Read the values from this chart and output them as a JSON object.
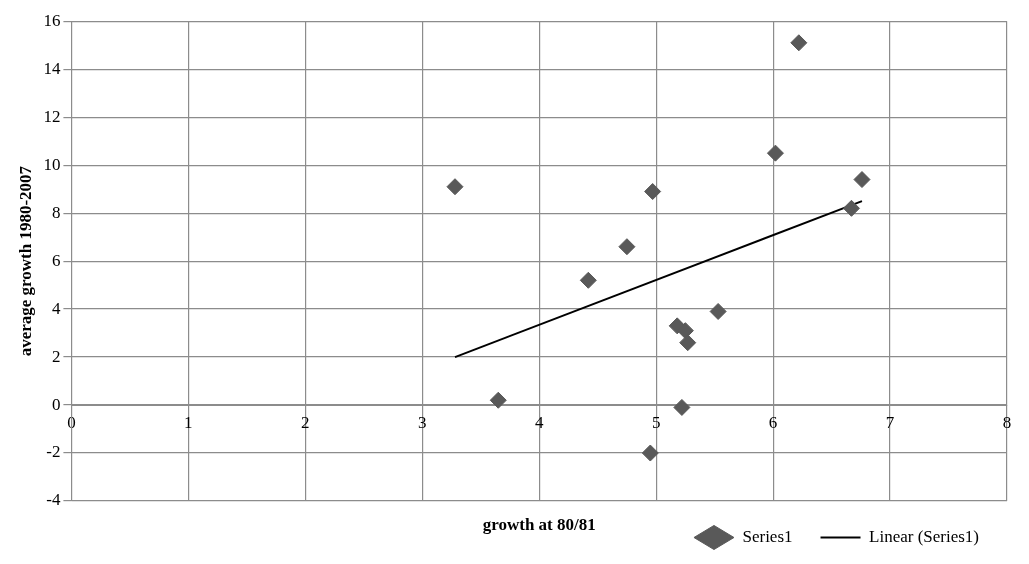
{
  "chart_data": {
    "type": "scatter",
    "xlabel": "growth at 80/81",
    "ylabel": "average growth 1980-2007",
    "xlim": [
      0,
      8
    ],
    "xticks": [
      0,
      1,
      2,
      3,
      4,
      5,
      6,
      7,
      8
    ],
    "ylim": [
      -4,
      16
    ],
    "yticks": [
      -4,
      -2,
      0,
      2,
      4,
      6,
      8,
      10,
      12,
      14,
      16
    ],
    "grid": true,
    "legend": "bottom right",
    "marker": "diamond",
    "series": [
      {
        "name": "Series1",
        "color": "#595959",
        "x": [
          3.28,
          3.65,
          4.42,
          4.75,
          4.97,
          4.95,
          5.18,
          5.25,
          5.27,
          5.22,
          5.53,
          6.02,
          6.22,
          6.67,
          6.76
        ],
        "values": [
          9.1,
          0.2,
          5.2,
          6.6,
          8.9,
          -2.0,
          3.3,
          3.1,
          2.6,
          -0.1,
          3.9,
          10.5,
          15.1,
          8.2,
          9.4
        ]
      },
      {
        "name": "Linear (Series1)",
        "type": "line",
        "color": "#000000",
        "x": [
          3.28,
          6.76
        ],
        "values": [
          2.0,
          8.5
        ],
        "marker": "none",
        "line_style": "solid"
      }
    ]
  }
}
